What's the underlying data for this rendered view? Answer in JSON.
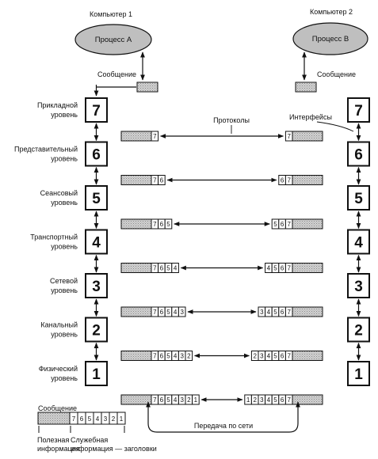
{
  "computers": {
    "left": {
      "title": "Компьютер 1",
      "process": "Процесс А",
      "message": "Сообщение"
    },
    "right": {
      "title": "Компьютер 2",
      "process": "Процесс В",
      "message": "Сообщение"
    }
  },
  "labels": {
    "protocols": "Протоколы",
    "interfaces": "Интерфейсы",
    "network_transfer": "Передача по сети"
  },
  "layers": [
    {
      "number": "7",
      "name": [
        "Прикладной",
        "уровень"
      ]
    },
    {
      "number": "6",
      "name": [
        "Представительный",
        "уровень"
      ]
    },
    {
      "number": "5",
      "name": [
        "Сеансовый",
        "уровень"
      ]
    },
    {
      "number": "4",
      "name": [
        "Транспортный",
        "уровень"
      ]
    },
    {
      "number": "3",
      "name": [
        "Сетевой",
        "уровень"
      ]
    },
    {
      "number": "2",
      "name": [
        "Канальный",
        "уровень"
      ]
    },
    {
      "number": "1",
      "name": [
        "Физический",
        "уровень"
      ]
    }
  ],
  "packets": [
    {
      "left_headers": [
        "7"
      ],
      "right_headers": [
        "7"
      ]
    },
    {
      "left_headers": [
        "7",
        "6"
      ],
      "right_headers": [
        "6",
        "7"
      ]
    },
    {
      "left_headers": [
        "7",
        "6",
        "5"
      ],
      "right_headers": [
        "5",
        "6",
        "7"
      ]
    },
    {
      "left_headers": [
        "7",
        "6",
        "5",
        "4"
      ],
      "right_headers": [
        "4",
        "5",
        "6",
        "7"
      ]
    },
    {
      "left_headers": [
        "7",
        "6",
        "5",
        "4",
        "3"
      ],
      "right_headers": [
        "3",
        "4",
        "5",
        "6",
        "7"
      ]
    },
    {
      "left_headers": [
        "7",
        "6",
        "5",
        "4",
        "3",
        "2"
      ],
      "right_headers": [
        "2",
        "3",
        "4",
        "5",
        "6",
        "7"
      ]
    },
    {
      "left_headers": [
        "7",
        "6",
        "5",
        "4",
        "3",
        "2",
        "1"
      ],
      "right_headers": [
        "1",
        "2",
        "3",
        "4",
        "5",
        "6",
        "7"
      ]
    }
  ],
  "legend": {
    "title": "Сообщение",
    "headers": [
      "7",
      "6",
      "5",
      "4",
      "3",
      "2",
      "1"
    ],
    "payload_label": [
      "Полезная",
      "информация"
    ],
    "service_label": [
      "Служебная",
      "информация — заголовки"
    ]
  },
  "colors": {
    "payload_fill": "#c9c9c9",
    "process_fill": "#bfbfbf",
    "line": "#111111"
  }
}
